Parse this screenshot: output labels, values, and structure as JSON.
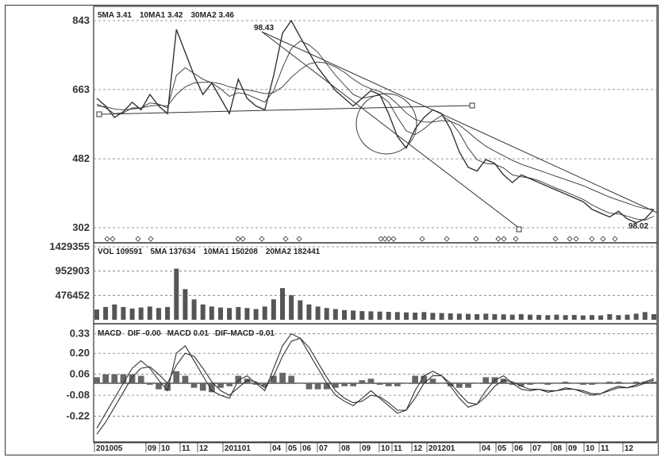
{
  "chart_data": [
    {
      "type": "line",
      "panel": "price",
      "header": {
        "ma5": "5MA 3.41",
        "ma10": "10MA1 3.42",
        "ma30": "30MA2 3.46"
      },
      "y_ticks": [
        "843",
        "663",
        "482",
        "302"
      ],
      "y_tick_values": [
        843,
        663,
        482,
        302
      ],
      "ylim": [
        302,
        843
      ],
      "annotations": [
        "98.43",
        "98.02"
      ],
      "grid": true,
      "series": [
        {
          "values": [
            640,
            620,
            590,
            605,
            630,
            610,
            650,
            620,
            600,
            820,
            760,
            700,
            650,
            680,
            640,
            600,
            690,
            640,
            620,
            610,
            700,
            810,
            843,
            800,
            760,
            720,
            690,
            660,
            640,
            620,
            640,
            660,
            650,
            600,
            540,
            510,
            560,
            590,
            610,
            600,
            560,
            500,
            460,
            450,
            480,
            470,
            440,
            420,
            440,
            430,
            420,
            410,
            400,
            390,
            380,
            370,
            350,
            340,
            330,
            345,
            325,
            315,
            325,
            350
          ]
        },
        {
          "values": [
            625,
            615,
            600,
            602,
            615,
            615,
            628,
            625,
            615,
            700,
            720,
            705,
            690,
            680,
            665,
            645,
            655,
            650,
            640,
            630,
            660,
            720,
            770,
            790,
            780,
            760,
            730,
            700,
            675,
            650,
            640,
            645,
            648,
            630,
            590,
            555,
            545,
            560,
            580,
            595,
            580,
            550,
            510,
            480,
            470,
            468,
            458,
            440,
            435,
            432,
            425,
            415,
            405,
            396,
            386,
            376,
            362,
            350,
            340,
            338,
            332,
            325,
            322,
            332
          ]
        },
        {
          "values": [
            620,
            618,
            612,
            610,
            612,
            615,
            620,
            622,
            620,
            650,
            670,
            680,
            682,
            682,
            678,
            670,
            665,
            662,
            658,
            652,
            655,
            670,
            695,
            715,
            730,
            735,
            732,
            722,
            708,
            690,
            675,
            665,
            658,
            645,
            625,
            602,
            585,
            578,
            578,
            582,
            580,
            570,
            552,
            532,
            515,
            502,
            490,
            478,
            468,
            460,
            452,
            444,
            436,
            428,
            420,
            412,
            402,
            392,
            382,
            374,
            366,
            358,
            352,
            350
          ]
        }
      ]
    },
    {
      "type": "bar",
      "panel": "volume",
      "header": {
        "vol": "VOL 109591",
        "ma5": "5MA 137634",
        "ma10": "10MA1 150208",
        "ma20": "20MA2 182441"
      },
      "y_ticks": [
        "1429355",
        "952903",
        "476452"
      ],
      "y_tick_values": [
        1429355,
        952903,
        476452
      ],
      "ylim": [
        0,
        1429355
      ],
      "grid": true,
      "values": [
        200000,
        250000,
        300000,
        250000,
        220000,
        240000,
        260000,
        230000,
        250000,
        1000000,
        600000,
        400000,
        300000,
        260000,
        240000,
        230000,
        250000,
        230000,
        210000,
        260000,
        400000,
        620000,
        480000,
        380000,
        300000,
        260000,
        230000,
        210000,
        190000,
        180000,
        170000,
        165000,
        160000,
        155000,
        150000,
        145000,
        140000,
        150000,
        135000,
        130000,
        125000,
        120000,
        115000,
        110000,
        120000,
        110000,
        105000,
        100000,
        110000,
        100000,
        95000,
        90000,
        100000,
        90000,
        95000,
        85000,
        90000,
        85000,
        110000,
        90000,
        100000,
        120000,
        150000,
        110000
      ]
    },
    {
      "type": "line",
      "panel": "macd",
      "header": {
        "macd": "MACD",
        "dif": "DIF -0.00",
        "dea": "MACD 0.01",
        "hist": "DIF-MACD -0.01"
      },
      "y_ticks": [
        "0.33",
        "0.20",
        "0.06",
        "-0.08",
        "-0.22"
      ],
      "y_tick_values": [
        0.33,
        0.2,
        0.06,
        -0.08,
        -0.22
      ],
      "ylim": [
        -0.36,
        0.36
      ],
      "grid": true,
      "series": [
        {
          "values": [
            -0.3,
            -0.2,
            -0.1,
            0.0,
            0.1,
            0.15,
            0.1,
            0.02,
            -0.05,
            0.2,
            0.25,
            0.15,
            0.05,
            -0.05,
            -0.08,
            -0.1,
            0.02,
            0.05,
            0.0,
            -0.05,
            0.1,
            0.25,
            0.33,
            0.3,
            0.2,
            0.1,
            0.0,
            -0.08,
            -0.12,
            -0.15,
            -0.1,
            -0.05,
            -0.1,
            -0.15,
            -0.2,
            -0.18,
            -0.05,
            0.05,
            0.08,
            0.05,
            -0.02,
            -0.1,
            -0.16,
            -0.14,
            -0.05,
            0.02,
            0.05,
            0.0,
            -0.04,
            -0.05,
            -0.04,
            -0.06,
            -0.05,
            -0.03,
            -0.04,
            -0.06,
            -0.08,
            -0.07,
            -0.04,
            -0.02,
            -0.03,
            -0.01,
            0.01,
            0.03
          ]
        },
        {
          "values": [
            -0.34,
            -0.26,
            -0.16,
            -0.06,
            0.04,
            0.1,
            0.11,
            0.06,
            0.0,
            0.12,
            0.2,
            0.18,
            0.1,
            0.01,
            -0.05,
            -0.08,
            -0.03,
            0.02,
            0.01,
            -0.03,
            0.05,
            0.18,
            0.28,
            0.3,
            0.24,
            0.14,
            0.04,
            -0.05,
            -0.1,
            -0.13,
            -0.12,
            -0.08,
            -0.09,
            -0.13,
            -0.18,
            -0.18,
            -0.1,
            0.0,
            0.05,
            0.05,
            0.0,
            -0.07,
            -0.13,
            -0.14,
            -0.09,
            -0.02,
            0.02,
            0.01,
            -0.02,
            -0.04,
            -0.04,
            -0.05,
            -0.05,
            -0.04,
            -0.04,
            -0.05,
            -0.07,
            -0.07,
            -0.05,
            -0.03,
            -0.03,
            -0.02,
            0.0,
            0.02
          ]
        }
      ],
      "histogram": [
        0.04,
        0.06,
        0.06,
        0.06,
        0.06,
        0.05,
        -0.01,
        -0.04,
        -0.05,
        0.08,
        0.05,
        -0.03,
        -0.05,
        -0.06,
        -0.03,
        -0.02,
        0.05,
        0.03,
        -0.01,
        -0.02,
        0.05,
        0.07,
        0.05,
        0.0,
        -0.04,
        -0.04,
        -0.04,
        -0.03,
        -0.02,
        -0.02,
        0.02,
        0.03,
        -0.01,
        -0.02,
        -0.02,
        0.0,
        0.05,
        0.05,
        0.03,
        0.0,
        -0.02,
        -0.03,
        -0.03,
        0.0,
        0.04,
        0.04,
        0.03,
        -0.01,
        -0.02,
        -0.01,
        0.0,
        -0.01,
        0.0,
        0.01,
        0.0,
        -0.01,
        -0.01,
        0.0,
        0.01,
        0.01,
        0.0,
        0.01,
        0.01,
        0.01
      ]
    }
  ],
  "x_labels": [
    "201005",
    "09",
    "10",
    "11",
    "12",
    "201101",
    "04",
    "05",
    "06",
    "07",
    "08",
    "09",
    "10",
    "11",
    "12",
    "201201",
    "04",
    "05",
    "06",
    "07",
    "08",
    "09",
    "10",
    "11",
    "12"
  ],
  "colors": {
    "line": "#333333",
    "grid": "#777777",
    "background": "#ffffff"
  }
}
